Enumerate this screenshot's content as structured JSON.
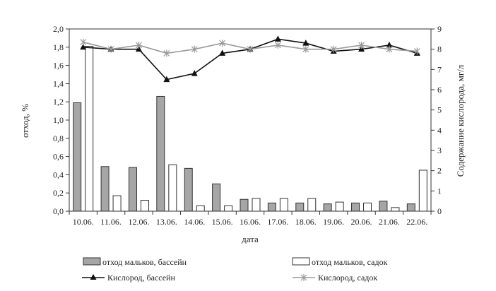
{
  "chart_data": {
    "type": "bar",
    "categories": [
      "10.06.",
      "11.06.",
      "12.06.",
      "13.06.",
      "14.06.",
      "15.06.",
      "16.06.",
      "17.06.",
      "18.06.",
      "19.06.",
      "20.06.",
      "21.06.",
      "22.06."
    ],
    "xlabel": "дата",
    "ylabel_left": "отход, %",
    "ylabel_right": "Содержание кислорода, мг/л",
    "ylim_left": [
      0,
      2.0
    ],
    "ylim_right": [
      0,
      9
    ],
    "yticks_left": [
      "0,0",
      "0,2",
      "0,4",
      "0,6",
      "0,8",
      "1,0",
      "1,2",
      "1,4",
      "1,6",
      "1,8",
      "2,0"
    ],
    "yticks_right": [
      "0",
      "1",
      "2",
      "3",
      "4",
      "5",
      "6",
      "7",
      "8",
      "9"
    ],
    "grid": false,
    "legend_position": "bottom",
    "bar_series": [
      {
        "name": "отход мальков, бассейн",
        "axis": "left",
        "color": "#a6a6a6",
        "values": [
          1.19,
          0.49,
          0.48,
          1.26,
          0.47,
          0.3,
          0.13,
          0.09,
          0.09,
          0.08,
          0.09,
          0.11,
          0.08
        ]
      },
      {
        "name": "отход мальков, садок",
        "axis": "left",
        "color": "#ffffff",
        "values": [
          1.81,
          0.17,
          0.12,
          0.51,
          0.06,
          0.06,
          0.14,
          0.14,
          0.14,
          0.1,
          0.09,
          0.04,
          0.45
        ]
      }
    ],
    "line_series": [
      {
        "name": "Кислород, бассейн",
        "axis": "right",
        "color": "#111111",
        "marker": "triangle",
        "values": [
          8.1,
          8.0,
          8.0,
          6.5,
          6.8,
          7.8,
          8.0,
          8.5,
          8.3,
          7.9,
          8.0,
          8.2,
          7.8
        ]
      },
      {
        "name": "Кислород, садок",
        "axis": "right",
        "color": "#9a9a9a",
        "marker": "star",
        "values": [
          8.35,
          8.0,
          8.2,
          7.8,
          8.0,
          8.3,
          8.0,
          8.2,
          8.0,
          8.0,
          8.2,
          8.0,
          7.9
        ]
      }
    ]
  }
}
